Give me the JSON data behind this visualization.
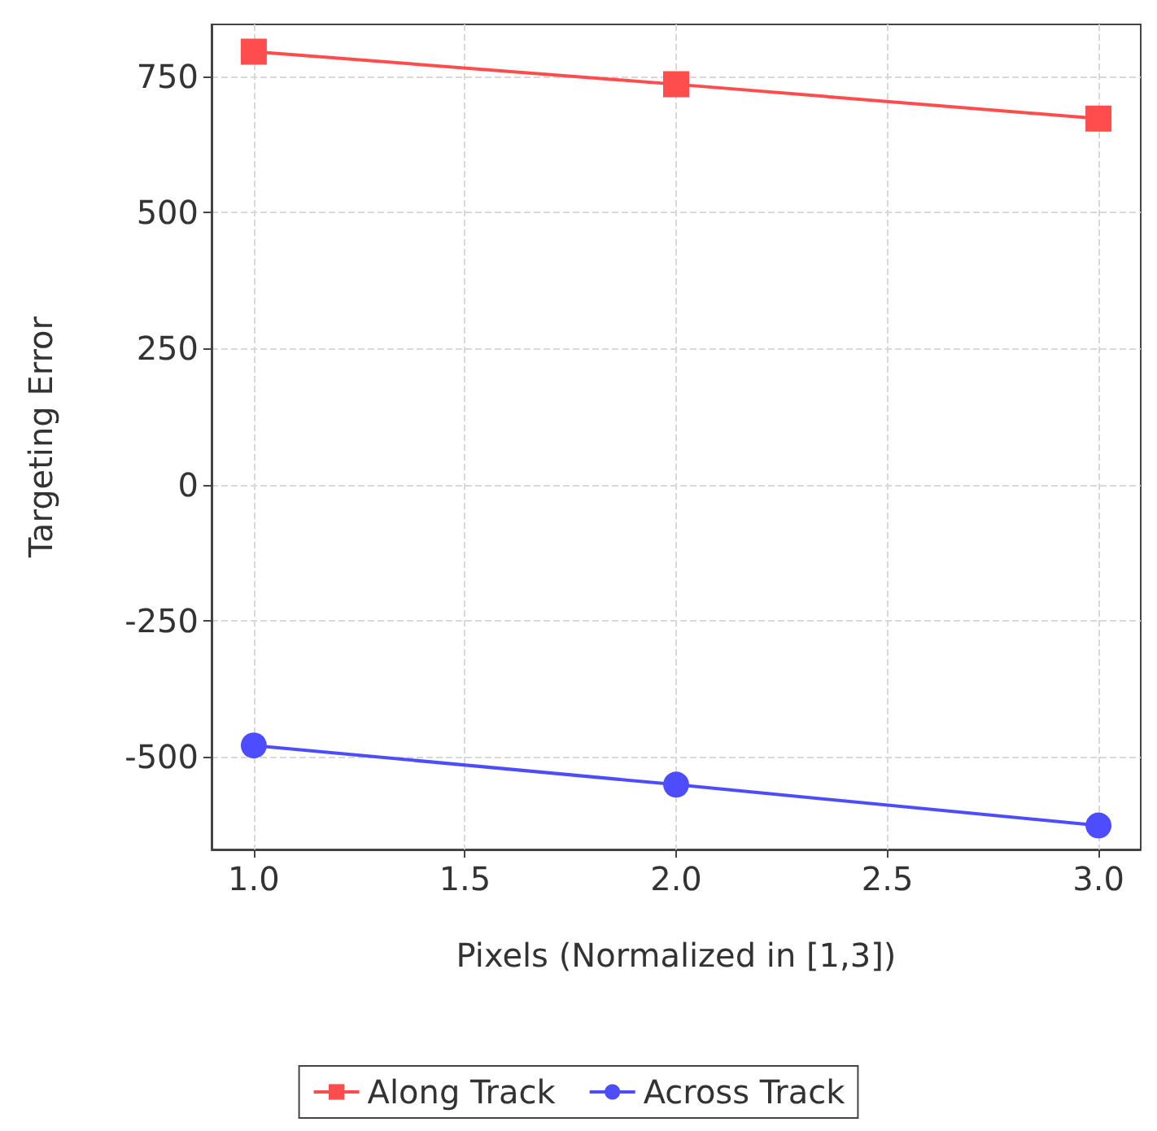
{
  "chart_data": {
    "type": "line",
    "xlabel": "Pixels (Normalized in [1,3])",
    "ylabel": "Targeting Error",
    "x": [
      1,
      2,
      3
    ],
    "series": [
      {
        "name": "Along Track",
        "color": "#ff4d4d",
        "marker": "square",
        "values": [
          795,
          735,
          672
        ]
      },
      {
        "name": "Across Track",
        "color": "#4d4dff",
        "marker": "circle",
        "values": [
          -479,
          -551,
          -626
        ]
      }
    ],
    "xlim": [
      0.9,
      3.1
    ],
    "xticks": [
      {
        "value": 1,
        "label": "1.0"
      },
      1.5,
      {
        "value": 2,
        "label": "2.0"
      },
      2.5,
      {
        "value": 3,
        "label": "3.0"
      }
    ],
    "ylim": [
      -670,
      845
    ],
    "yticks": [
      -500,
      -250,
      0,
      250,
      500,
      750
    ],
    "grid": true,
    "legend": "bottom"
  }
}
